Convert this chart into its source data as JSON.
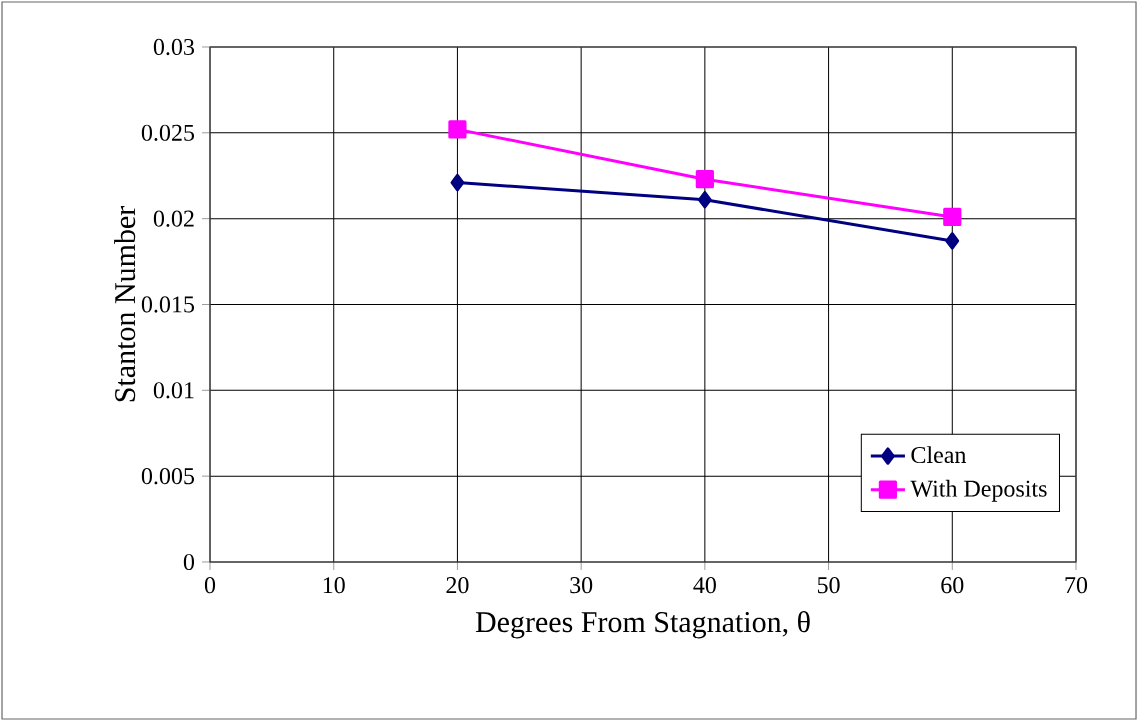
{
  "chart_data": {
    "type": "line",
    "xlabel": "Degrees From Stagnation, θ",
    "ylabel": "Stanton Number",
    "x": [
      20,
      40,
      60
    ],
    "series": [
      {
        "name": "Clean",
        "color": "#000080",
        "marker": "diamond",
        "values": [
          0.0221,
          0.0211,
          0.0187
        ]
      },
      {
        "name": "With Deposits",
        "color": "#ff00ff",
        "marker": "square",
        "values": [
          0.0252,
          0.0223,
          0.0201
        ]
      }
    ],
    "xlim": [
      0,
      70
    ],
    "xticks": [
      0,
      10,
      20,
      30,
      40,
      50,
      60,
      70
    ],
    "ylim": [
      0,
      0.03
    ],
    "yticks": [
      0,
      0.005,
      0.01,
      0.015,
      0.02,
      0.025,
      0.03
    ],
    "grid": true,
    "legend": "bottom right",
    "line_style": "solid"
  }
}
